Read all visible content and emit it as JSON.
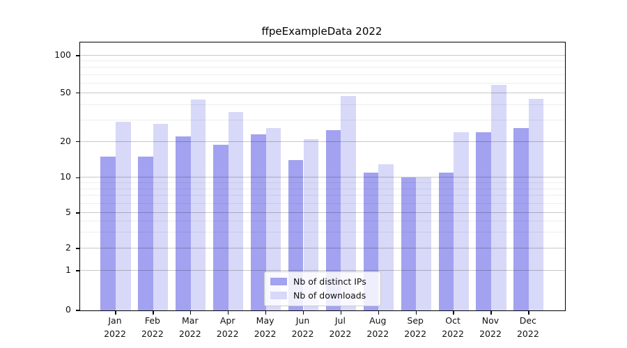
{
  "title": "ffpeExampleData 2022",
  "chart_data": {
    "type": "bar",
    "title": "ffpeExampleData 2022",
    "categories": [
      "Jan 2022",
      "Feb 2022",
      "Mar 2022",
      "Apr 2022",
      "May 2022",
      "Jun 2022",
      "Jul 2022",
      "Aug 2022",
      "Sep 2022",
      "Oct 2022",
      "Nov 2022",
      "Dec 2022"
    ],
    "months": [
      "Jan",
      "Feb",
      "Mar",
      "Apr",
      "May",
      "Jun",
      "Jul",
      "Aug",
      "Sep",
      "Oct",
      "Nov",
      "Dec"
    ],
    "year": "2022",
    "series": [
      {
        "name": "Nb of distinct IPs",
        "color": "#a2a2f0",
        "values": [
          15,
          15,
          22,
          19,
          23,
          14,
          25,
          11,
          10,
          11,
          24,
          26
        ]
      },
      {
        "name": "Nb of downloads",
        "color": "#d8d8f8",
        "values": [
          29,
          28,
          44,
          35,
          26,
          21,
          47,
          13,
          10,
          24,
          58,
          45
        ]
      }
    ],
    "xlabel": "",
    "ylabel": "",
    "yscale": "symlog",
    "y_ticks": [
      0,
      1,
      2,
      5,
      10,
      20,
      50,
      100
    ],
    "y_tick_labels": [
      "0",
      "1",
      "2",
      "5",
      "10",
      "20",
      "50",
      "100"
    ],
    "y_minor_ticks": [
      3,
      4,
      6,
      7,
      8,
      9,
      30,
      40,
      60,
      70,
      80,
      90
    ],
    "ylim": [
      0,
      128
    ],
    "grid": "horizontal major and minor, drawn over bars",
    "legend_position": "lower center"
  },
  "legend": {
    "items": [
      {
        "label": "Nb of distinct IPs",
        "color": "#a2a2f0"
      },
      {
        "label": "Nb of downloads",
        "color": "#d8d8f8"
      }
    ]
  },
  "colors": {
    "distinct_ips": "#a2a2f0",
    "downloads": "#d8d8f8",
    "axis": "#000000",
    "grid_major": "rgba(0,0,0,0.22)",
    "grid_minor": "rgba(0,0,0,0.07)"
  }
}
